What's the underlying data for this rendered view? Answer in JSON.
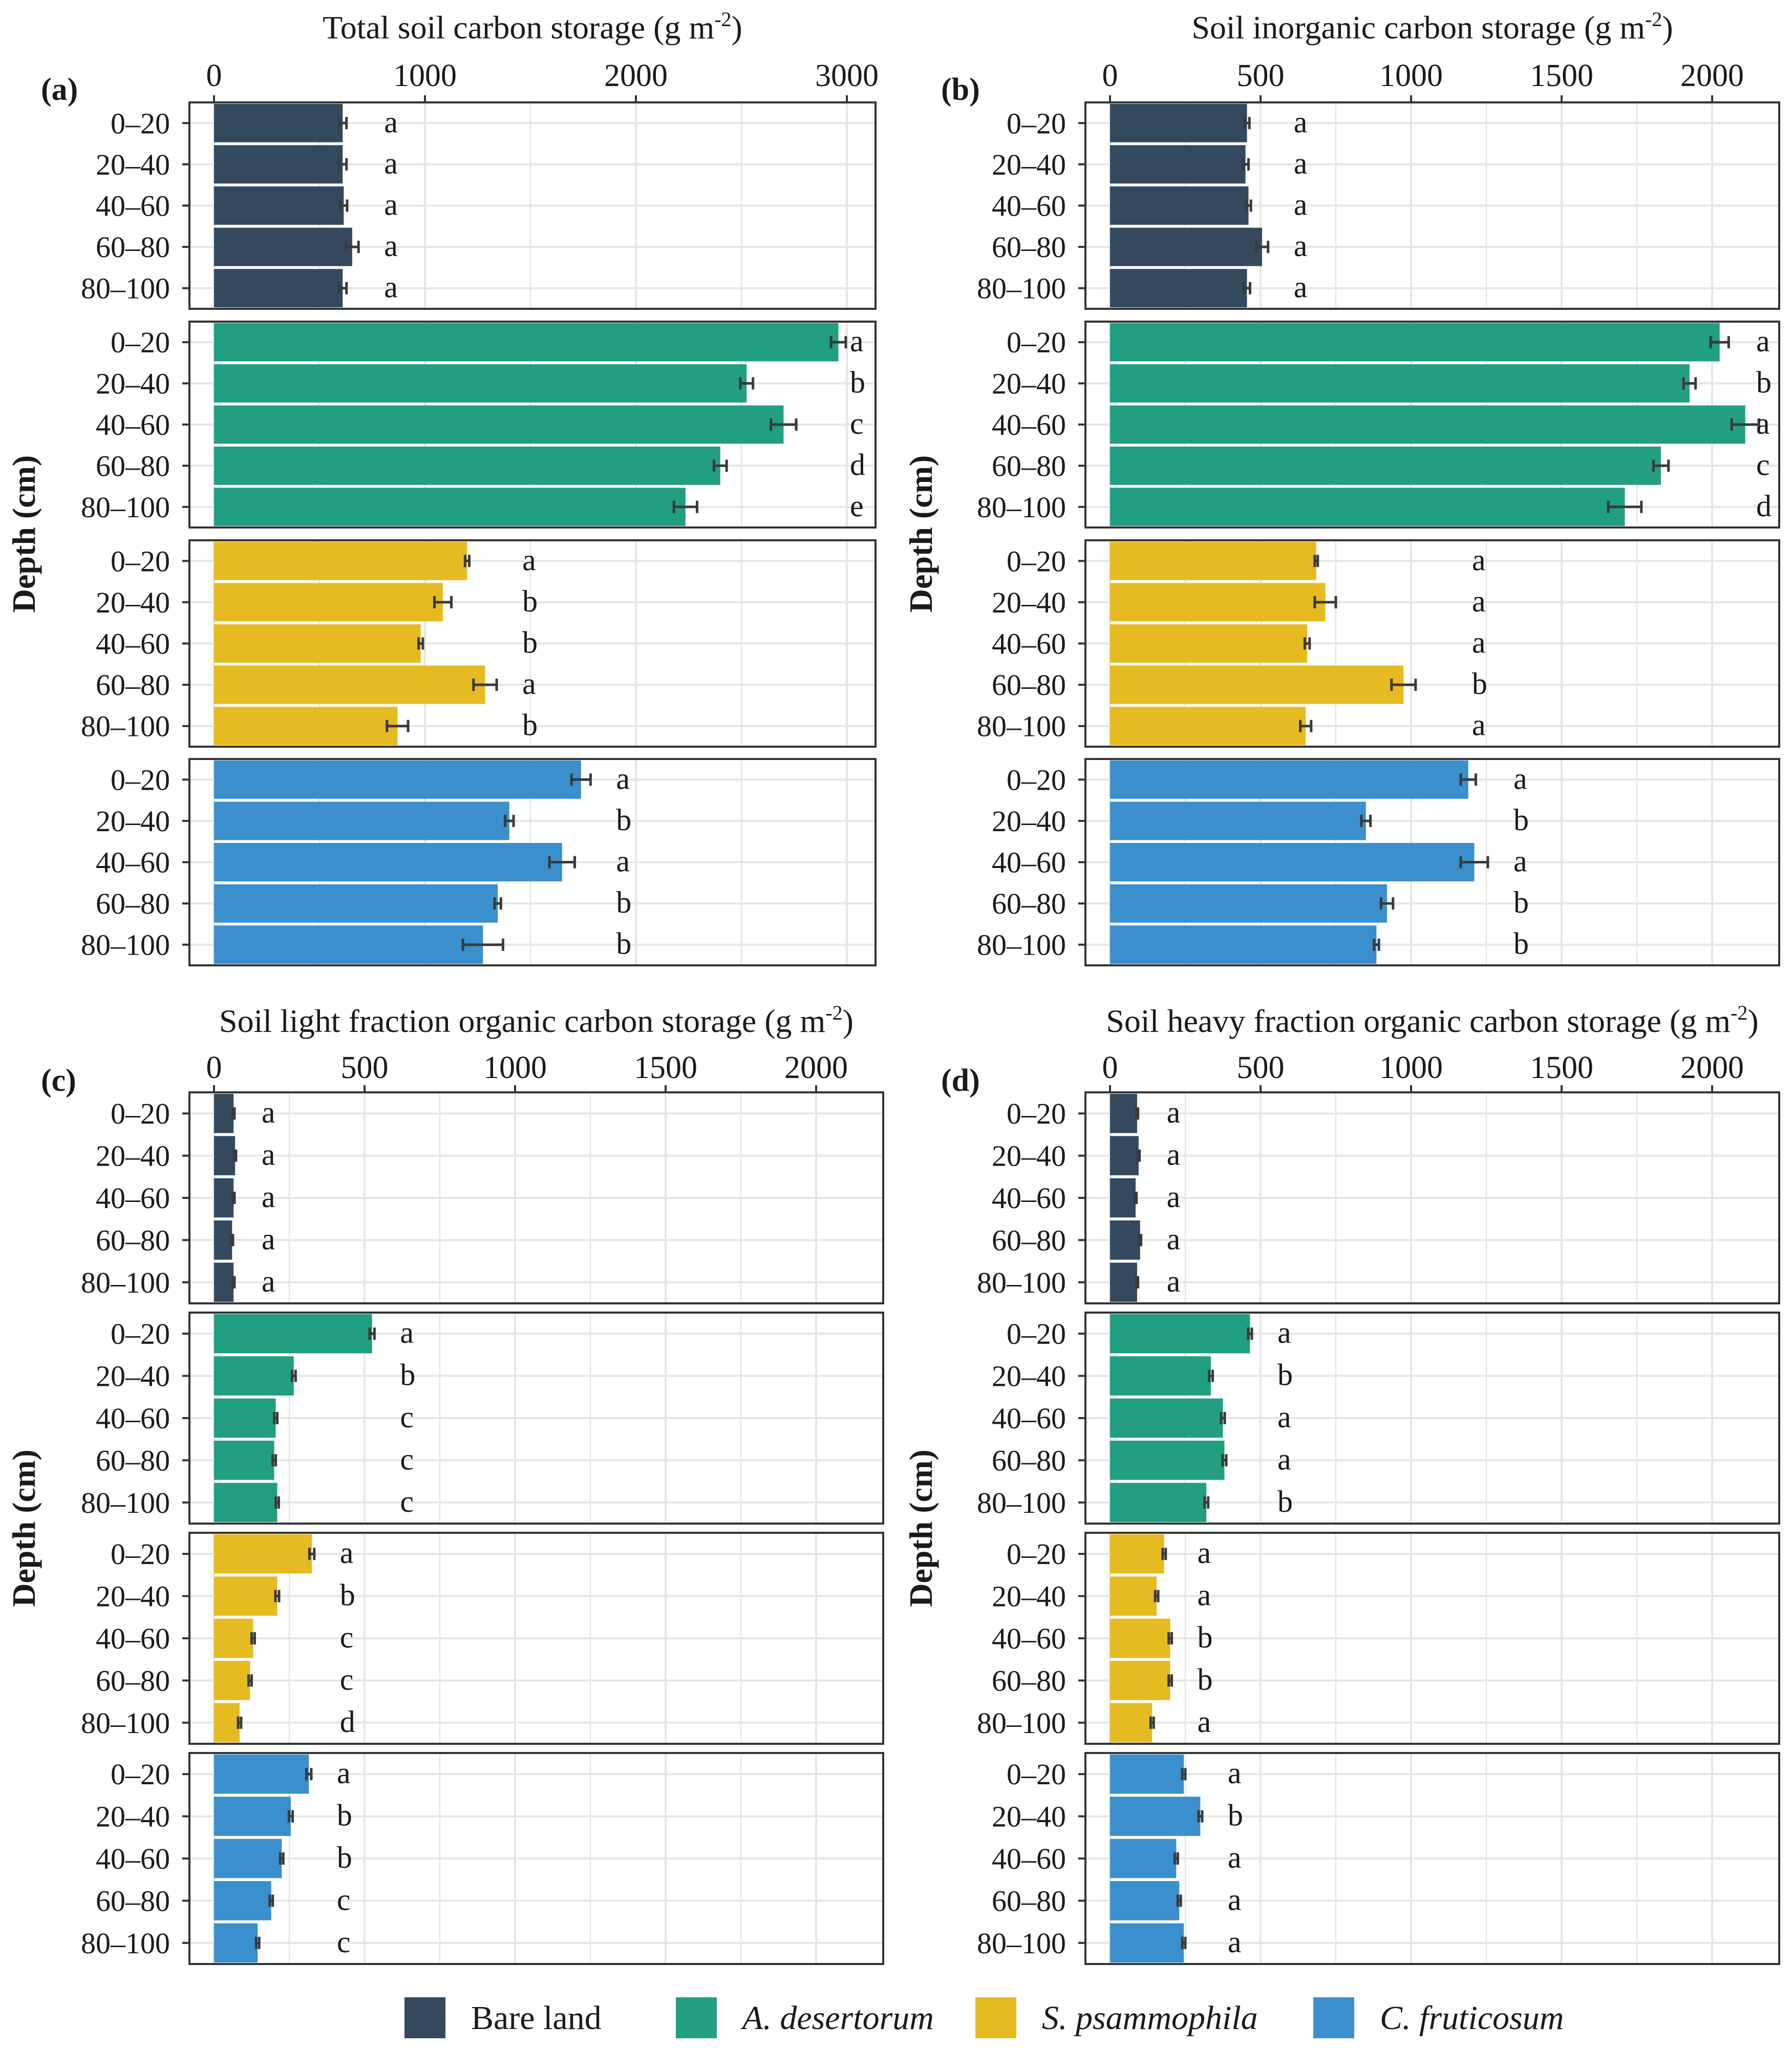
{
  "chart_data": [
    {
      "type": "bar",
      "orientation": "horizontal",
      "panel_label": "(a)",
      "title": "Total soil carbon storage (g m",
      "title_unit_exp": "-2",
      "title_close": ")",
      "ylabel": "Depth (cm)",
      "xlim": [
        0,
        3100
      ],
      "x_ticks": [
        0,
        1000,
        2000,
        3000
      ],
      "categories": [
        "0–20",
        "20–40",
        "40–60",
        "60–80",
        "80–100"
      ],
      "series": [
        {
          "name": "Bare land",
          "values": [
            610,
            610,
            615,
            655,
            610
          ],
          "errors": [
            18,
            18,
            16,
            30,
            18
          ],
          "letters": [
            "a",
            "a",
            "a",
            "a",
            "a"
          ]
        },
        {
          "name": "A. desertorum",
          "values": [
            2960,
            2525,
            2700,
            2400,
            2235
          ],
          "errors": [
            35,
            30,
            60,
            30,
            55
          ],
          "letters": [
            "a",
            "b",
            "c",
            "d",
            "e"
          ]
        },
        {
          "name": "S. psammophila",
          "values": [
            1200,
            1085,
            980,
            1285,
            870
          ],
          "errors": [
            10,
            40,
            10,
            55,
            50
          ],
          "letters": [
            "a",
            "b",
            "b",
            "a",
            "b"
          ]
        },
        {
          "name": "C. fruticosum",
          "values": [
            1740,
            1400,
            1650,
            1345,
            1275
          ],
          "errors": [
            45,
            20,
            60,
            15,
            95
          ],
          "letters": [
            "a",
            "b",
            "a",
            "b",
            "b"
          ]
        }
      ]
    },
    {
      "type": "bar",
      "orientation": "horizontal",
      "panel_label": "(b)",
      "title": "Soil inorganic carbon storage (g m",
      "title_unit_exp": "-2",
      "title_close": ")",
      "ylabel": "Depth (cm)",
      "xlim": [
        0,
        2280
      ],
      "x_ticks": [
        0,
        500,
        1000,
        1500,
        2000
      ],
      "categories": [
        "0–20",
        "20–40",
        "40–60",
        "60–80",
        "80–100"
      ],
      "series": [
        {
          "name": "Bare land",
          "values": [
            455,
            450,
            460,
            505,
            455
          ],
          "errors": [
            8,
            10,
            8,
            20,
            10
          ],
          "letters": [
            "a",
            "a",
            "a",
            "a",
            "a"
          ]
        },
        {
          "name": "A. desertorum",
          "values": [
            2025,
            1925,
            2110,
            1830,
            1710
          ],
          "errors": [
            30,
            20,
            45,
            25,
            55
          ],
          "letters": [
            "a",
            "b",
            "a",
            "c",
            "d"
          ]
        },
        {
          "name": "S. psammophila",
          "values": [
            685,
            715,
            655,
            975,
            650
          ],
          "errors": [
            5,
            35,
            8,
            40,
            18
          ],
          "letters": [
            "a",
            "a",
            "a",
            "b",
            "a"
          ]
        },
        {
          "name": "C. fruticosum",
          "values": [
            1190,
            850,
            1210,
            920,
            885
          ],
          "errors": [
            25,
            15,
            45,
            20,
            8
          ],
          "letters": [
            "a",
            "b",
            "a",
            "b",
            "b"
          ]
        }
      ]
    },
    {
      "type": "bar",
      "orientation": "horizontal",
      "panel_label": "(c)",
      "title": "Soil light fraction organic carbon storage (g m",
      "title_unit_exp": "-2",
      "title_close": ")",
      "ylabel": "Depth (cm)",
      "xlim": [
        0,
        2280
      ],
      "x_ticks": [
        0,
        500,
        1000,
        1500,
        2000
      ],
      "categories": [
        "0–20",
        "20–40",
        "40–60",
        "60–80",
        "80–100"
      ],
      "series": [
        {
          "name": "Bare land",
          "values": [
            65,
            70,
            65,
            60,
            65
          ],
          "errors": [
            3,
            3,
            3,
            3,
            3
          ],
          "letters": [
            "a",
            "a",
            "a",
            "a",
            "a"
          ]
        },
        {
          "name": "A. desertorum",
          "values": [
            525,
            265,
            205,
            200,
            210
          ],
          "errors": [
            8,
            6,
            5,
            5,
            5
          ],
          "letters": [
            "a",
            "b",
            "c",
            "c",
            "c"
          ]
        },
        {
          "name": "S. psammophila",
          "values": [
            325,
            210,
            130,
            120,
            85
          ],
          "errors": [
            8,
            6,
            5,
            5,
            5
          ],
          "letters": [
            "a",
            "b",
            "c",
            "c",
            "d"
          ]
        },
        {
          "name": "C. fruticosum",
          "values": [
            315,
            255,
            225,
            190,
            145
          ],
          "errors": [
            8,
            6,
            5,
            5,
            5
          ],
          "letters": [
            "a",
            "b",
            "b",
            "c",
            "c"
          ]
        }
      ]
    },
    {
      "type": "bar",
      "orientation": "horizontal",
      "panel_label": "(d)",
      "title": "Soil heavy fraction organic carbon storage (g m",
      "title_unit_exp": "-2",
      "title_close": ")",
      "ylabel": "Depth (cm)",
      "xlim": [
        0,
        2280
      ],
      "x_ticks": [
        0,
        500,
        1000,
        1500,
        2000
      ],
      "categories": [
        "0–20",
        "20–40",
        "40–60",
        "60–80",
        "80–100"
      ],
      "series": [
        {
          "name": "Bare land",
          "values": [
            90,
            95,
            85,
            100,
            90
          ],
          "errors": [
            3,
            3,
            3,
            3,
            3
          ],
          "letters": [
            "a",
            "a",
            "a",
            "a",
            "a"
          ]
        },
        {
          "name": "A. desertorum",
          "values": [
            465,
            335,
            375,
            380,
            320
          ],
          "errors": [
            6,
            6,
            6,
            6,
            6
          ],
          "letters": [
            "a",
            "b",
            "a",
            "a",
            "b"
          ]
        },
        {
          "name": "S. psammophila",
          "values": [
            180,
            155,
            200,
            200,
            140
          ],
          "errors": [
            5,
            5,
            5,
            5,
            5
          ],
          "letters": [
            "a",
            "a",
            "b",
            "b",
            "a"
          ]
        },
        {
          "name": "C. fruticosum",
          "values": [
            245,
            300,
            220,
            230,
            245
          ],
          "errors": [
            5,
            6,
            5,
            5,
            5
          ],
          "letters": [
            "a",
            "b",
            "a",
            "a",
            "a"
          ]
        }
      ]
    }
  ],
  "legend": {
    "items": [
      {
        "label": "Bare land",
        "italic": false,
        "color": "#34495e"
      },
      {
        "label": "A. desertorum",
        "italic": true,
        "color": "#229e82"
      },
      {
        "label": "S. psammophila",
        "italic": true,
        "color": "#e6bb22"
      },
      {
        "label": "C. fruticosum",
        "italic": true,
        "color": "#3a8fcc"
      }
    ]
  },
  "colors": {
    "bare_land": "#34495e",
    "a_desertorum": "#229e82",
    "s_psammophila": "#e6bb22",
    "c_fruticosum": "#3a8fcc",
    "grid": "#e6e6e6",
    "frame": "#333333",
    "error_bar": "#3a3a3a"
  }
}
